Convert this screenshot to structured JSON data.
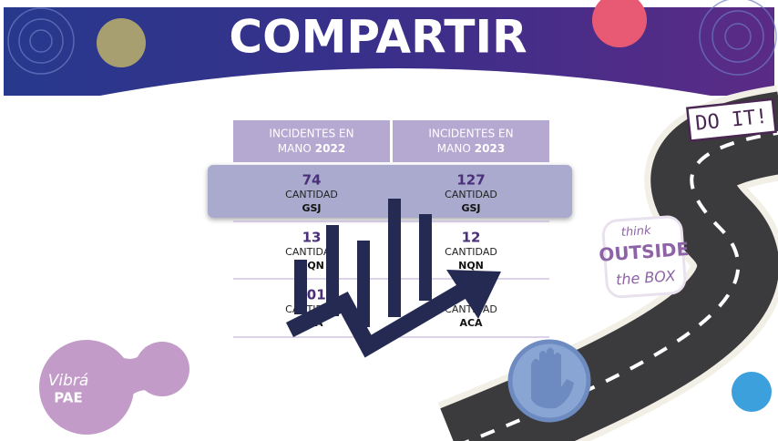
{
  "header": {
    "title": "COMPARTIR"
  },
  "table": {
    "columns": [
      {
        "line1": "INCIDENTES EN",
        "line2": "MANO",
        "year": "2022"
      },
      {
        "line1": "INCIDENTES EN",
        "line2": "MANO",
        "year": "2023"
      }
    ],
    "rows": [
      [
        {
          "value": 74,
          "label": "CANTIDAD",
          "code": "GSJ"
        },
        {
          "value": 127,
          "label": "CANTIDAD",
          "code": "GSJ"
        }
      ],
      [
        {
          "value": 13,
          "label": "CANTIDAD",
          "code": "NQN"
        },
        {
          "value": 12,
          "label": "CANTIDAD",
          "code": "NQN"
        }
      ],
      [
        {
          "value": 101,
          "label": "CANTIDAD",
          "code": "ACA"
        },
        {
          "value": 1,
          "label": "CANTIDAD",
          "code": "ACA"
        }
      ]
    ]
  },
  "stickers": {
    "do_it": "DO IT!",
    "think": "think",
    "outside": "OUTSIDE",
    "the_box": "the BOX"
  },
  "logo": {
    "line1": "Vibrá",
    "line2": "PAE"
  }
}
